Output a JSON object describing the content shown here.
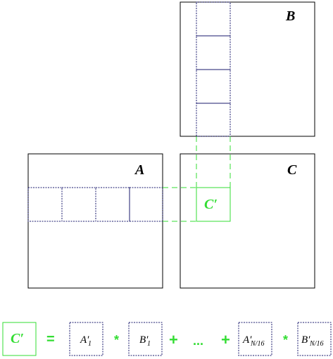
{
  "matrices": {
    "a_label": "A",
    "b_label": "B",
    "c_label": "C",
    "c_prime_label": "C′"
  },
  "equation": {
    "lhs": "C′",
    "equals": "=",
    "times_1": "*",
    "plus_1": "+",
    "ellipsis": "...",
    "plus_2": "+",
    "times_2": "*",
    "term_a1": "A′",
    "term_a1_sub": "1",
    "term_b1": "B′",
    "term_b1_sub": "1",
    "term_an": "A′",
    "term_an_sub": "N/16",
    "term_bn": "B′",
    "term_bn_sub": "N/16"
  },
  "colors": {
    "accent_green": "#33dd33",
    "dotted_blue": "#1a1a6e",
    "outline": "#000000"
  }
}
